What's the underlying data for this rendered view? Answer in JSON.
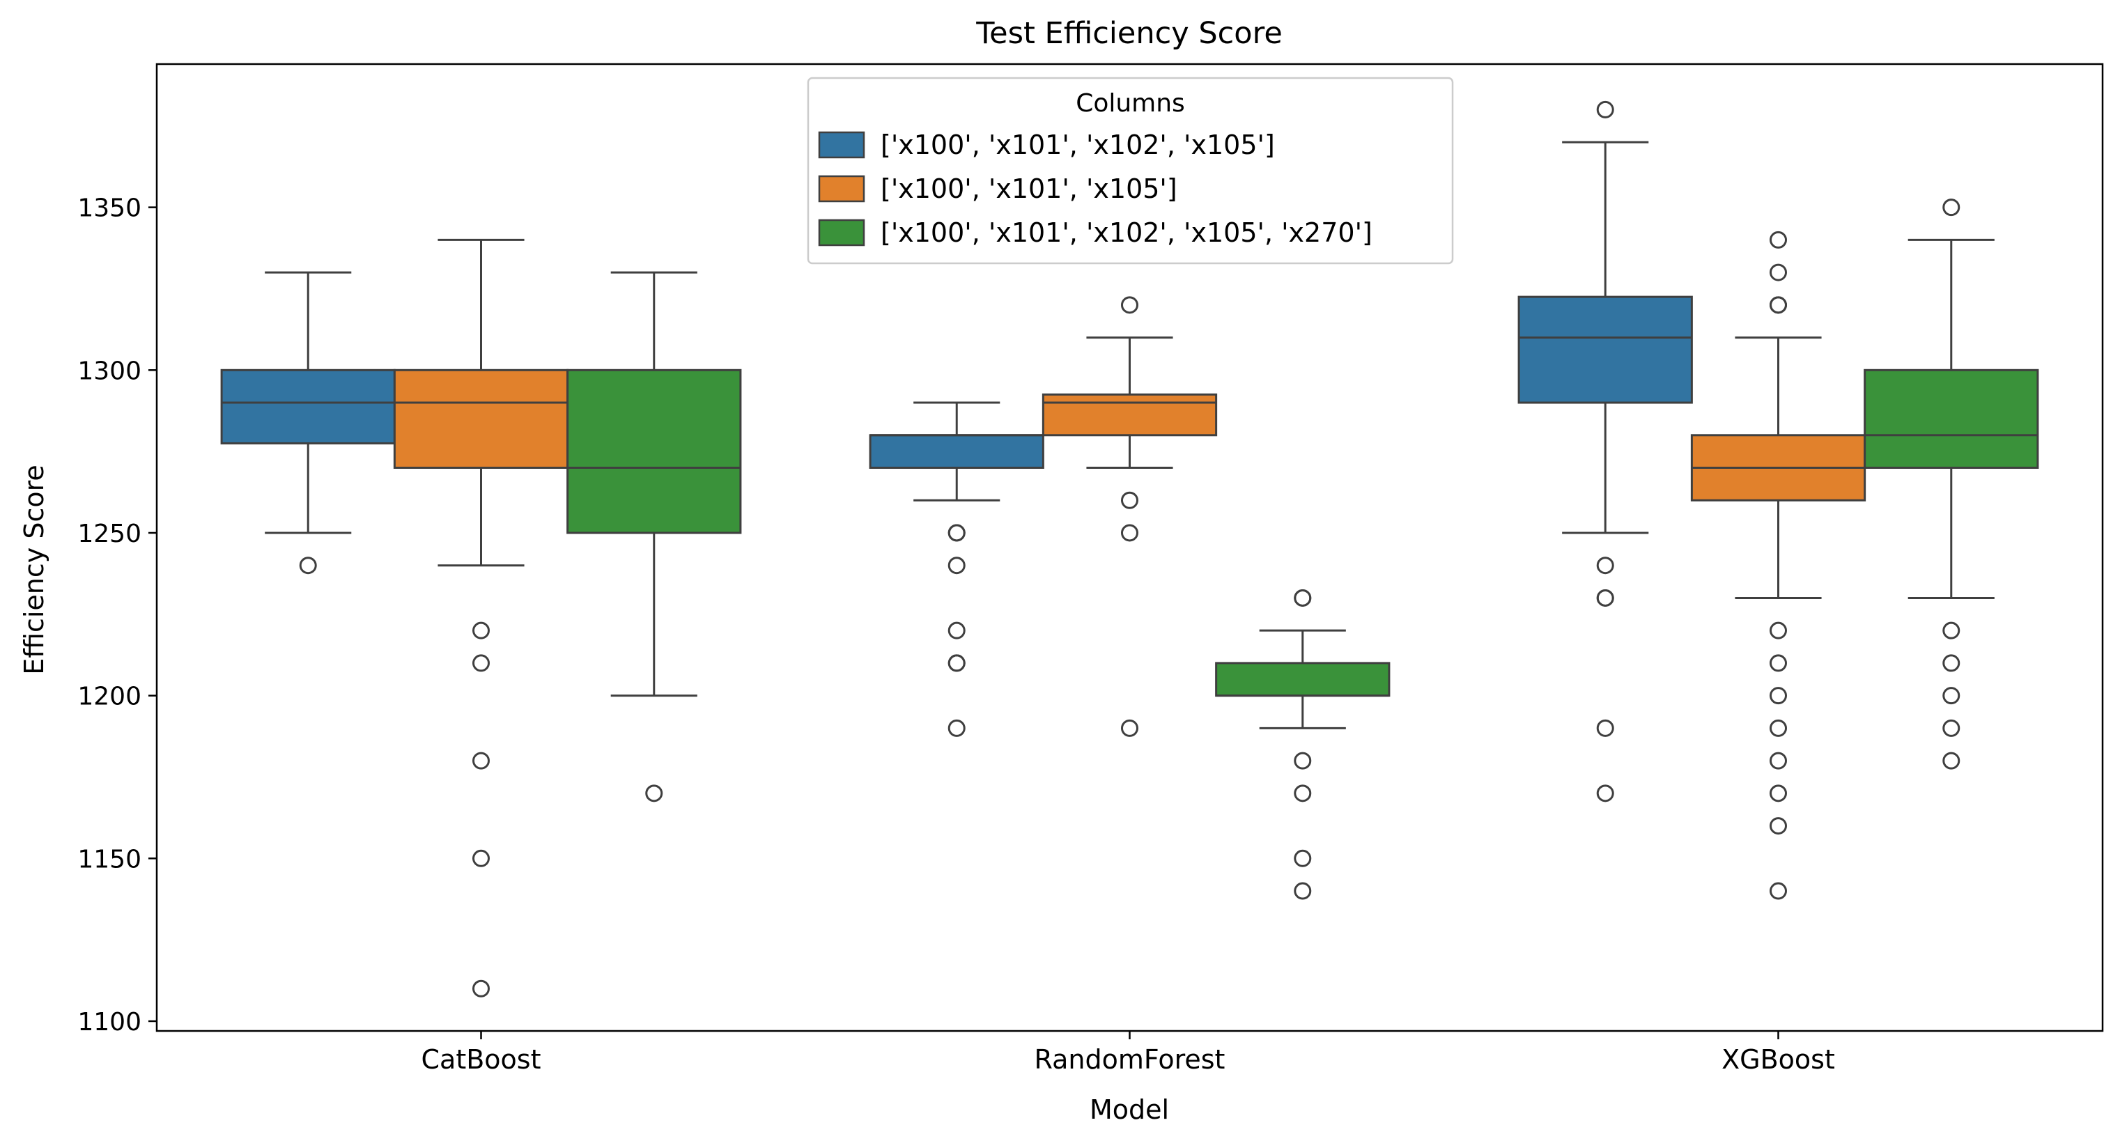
{
  "chart_data": {
    "type": "box",
    "title": "Test Efficiency Score",
    "xlabel": "Model",
    "ylabel": "Efficiency Score",
    "ylim": [
      1097,
      1394
    ],
    "yticks": [
      1100,
      1150,
      1200,
      1250,
      1300,
      1350
    ],
    "categories": [
      "CatBoost",
      "RandomForest",
      "XGBoost"
    ],
    "grid": false,
    "legend": {
      "title": "Columns",
      "placement": "top-center"
    },
    "series": [
      {
        "name": "['x100', 'x101', 'x102', 'x105']",
        "color": "#3274a1",
        "boxes": [
          {
            "whisker_low": 1250,
            "q1": 1277.5,
            "median": 1290,
            "q3": 1300,
            "whisker_high": 1330,
            "outliers": [
              1240
            ]
          },
          {
            "whisker_low": 1260,
            "q1": 1270,
            "median": 1280,
            "q3": 1280,
            "whisker_high": 1290,
            "outliers": [
              1250,
              1250,
              1240,
              1220,
              1210,
              1210,
              1190
            ]
          },
          {
            "whisker_low": 1250,
            "q1": 1290,
            "median": 1310,
            "q3": 1322.5,
            "whisker_high": 1370,
            "outliers": [
              1380,
              1240,
              1230,
              1230,
              1190,
              1170
            ]
          }
        ]
      },
      {
        "name": "['x100', 'x101', 'x105']",
        "color": "#e1812c",
        "boxes": [
          {
            "whisker_low": 1240,
            "q1": 1270,
            "median": 1290,
            "q3": 1300,
            "whisker_high": 1340,
            "outliers": [
              1220,
              1210,
              1180,
              1150,
              1110
            ]
          },
          {
            "whisker_low": 1270,
            "q1": 1280,
            "median": 1290,
            "q3": 1292.5,
            "whisker_high": 1310,
            "outliers": [
              1320,
              1260,
              1250,
              1190
            ]
          },
          {
            "whisker_low": 1230,
            "q1": 1260,
            "median": 1270,
            "q3": 1280,
            "whisker_high": 1310,
            "outliers": [
              1340,
              1330,
              1320,
              1320,
              1220,
              1210,
              1200,
              1190,
              1180,
              1170,
              1160,
              1140
            ]
          }
        ]
      },
      {
        "name": "['x100', 'x101', 'x102', 'x105', 'x270']",
        "color": "#3a923a",
        "boxes": [
          {
            "whisker_low": 1200,
            "q1": 1250,
            "median": 1270,
            "q3": 1300,
            "whisker_high": 1330,
            "outliers": [
              1170
            ]
          },
          {
            "whisker_low": 1190,
            "q1": 1200,
            "median": 1200,
            "q3": 1210,
            "whisker_high": 1220,
            "outliers": [
              1230,
              1230,
              1180,
              1170,
              1150,
              1140
            ]
          },
          {
            "whisker_low": 1230,
            "q1": 1270,
            "median": 1280,
            "q3": 1300,
            "whisker_high": 1340,
            "outliers": [
              1350,
              1220,
              1210,
              1200,
              1190,
              1180
            ]
          }
        ]
      }
    ]
  }
}
